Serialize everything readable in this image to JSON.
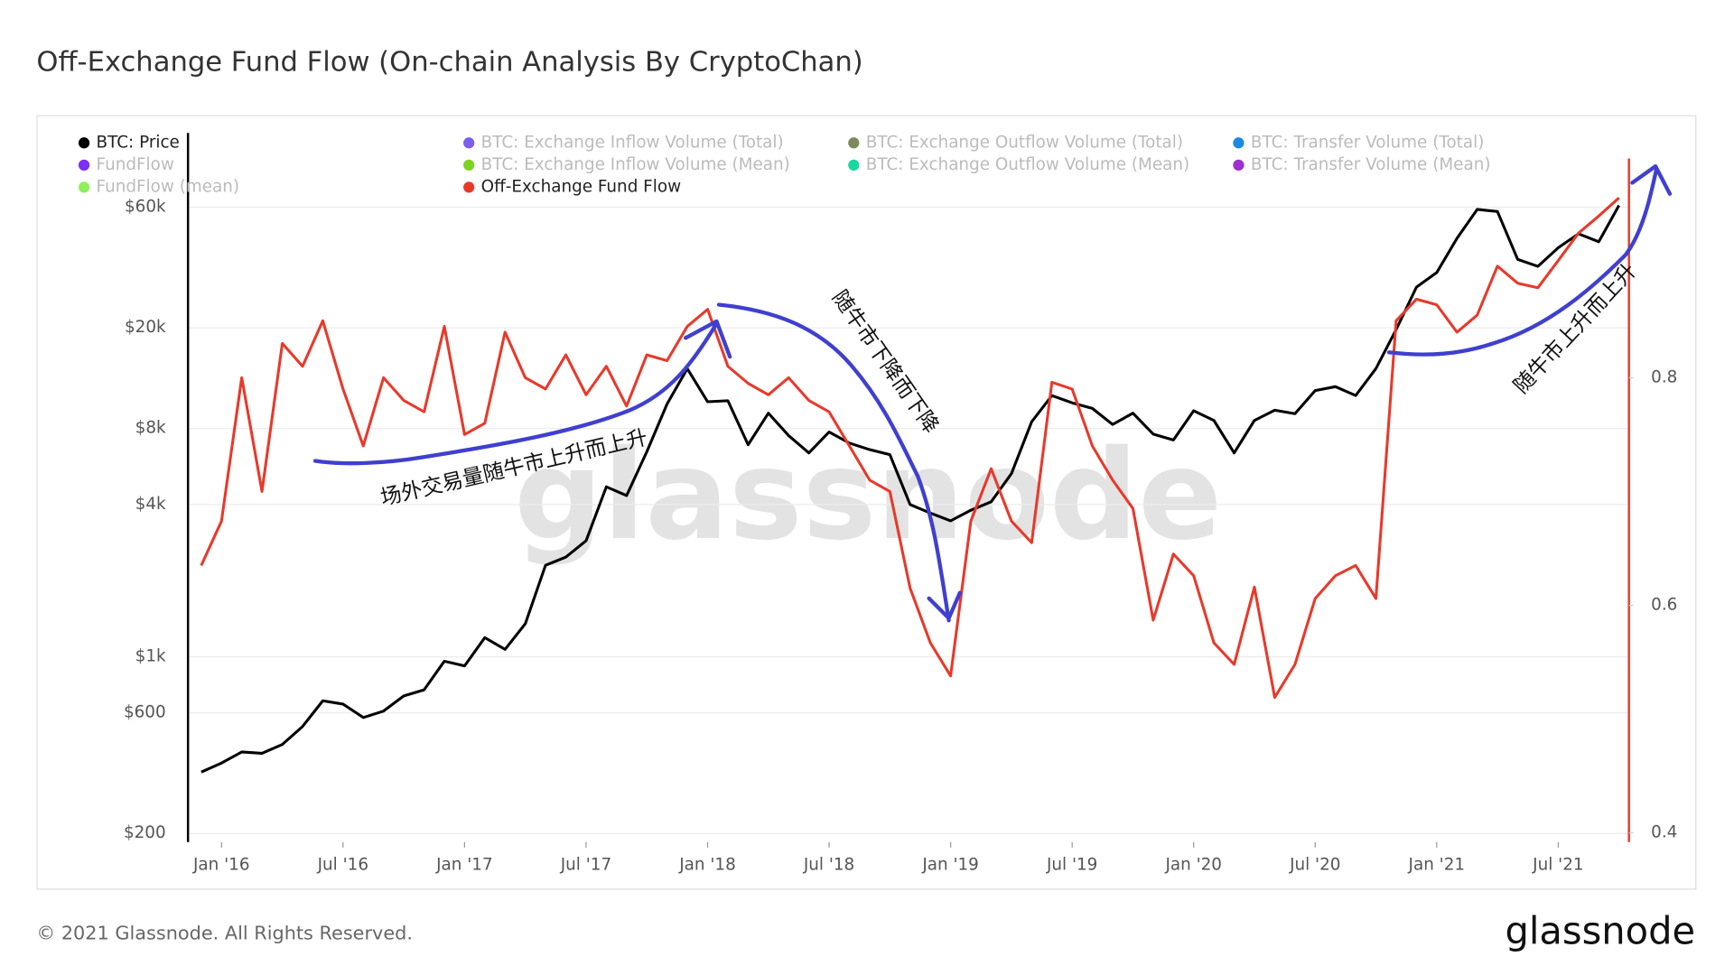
{
  "chart_data": {
    "type": "line",
    "title": "Off-Exchange Fund Flow (On-chain Analysis By CryptoChan)",
    "watermark": "glassnode",
    "footer": "© 2021 Glassnode. All Rights Reserved.",
    "brand": "glassnode",
    "ylog": true,
    "grid": true,
    "x": [
      "2015-12",
      "2016-01",
      "2016-02",
      "2016-03",
      "2016-04",
      "2016-05",
      "2016-06",
      "2016-07",
      "2016-08",
      "2016-09",
      "2016-10",
      "2016-11",
      "2016-12",
      "2017-01",
      "2017-02",
      "2017-03",
      "2017-04",
      "2017-05",
      "2017-06",
      "2017-07",
      "2017-08",
      "2017-09",
      "2017-10",
      "2017-11",
      "2017-12",
      "2018-01",
      "2018-02",
      "2018-03",
      "2018-04",
      "2018-05",
      "2018-06",
      "2018-07",
      "2018-08",
      "2018-09",
      "2018-10",
      "2018-11",
      "2018-12",
      "2019-01",
      "2019-02",
      "2019-03",
      "2019-04",
      "2019-05",
      "2019-06",
      "2019-07",
      "2019-08",
      "2019-09",
      "2019-10",
      "2019-11",
      "2019-12",
      "2020-01",
      "2020-02",
      "2020-03",
      "2020-04",
      "2020-05",
      "2020-06",
      "2020-07",
      "2020-08",
      "2020-09",
      "2020-10",
      "2020-11",
      "2020-12",
      "2021-01",
      "2021-02",
      "2021-03",
      "2021-04",
      "2021-05",
      "2021-06",
      "2021-07",
      "2021-08",
      "2021-09",
      "2021-10"
    ],
    "xticks": [
      {
        "value": "2016-01",
        "label": "Jan '16"
      },
      {
        "value": "2016-07",
        "label": "Jul '16"
      },
      {
        "value": "2017-01",
        "label": "Jan '17"
      },
      {
        "value": "2017-07",
        "label": "Jul '17"
      },
      {
        "value": "2018-01",
        "label": "Jan '18"
      },
      {
        "value": "2018-07",
        "label": "Jul '18"
      },
      {
        "value": "2019-01",
        "label": "Jan '19"
      },
      {
        "value": "2019-07",
        "label": "Jul '19"
      },
      {
        "value": "2020-01",
        "label": "Jan '20"
      },
      {
        "value": "2020-07",
        "label": "Jul '20"
      },
      {
        "value": "2021-01",
        "label": "Jan '21"
      },
      {
        "value": "2021-07",
        "label": "Jul '21"
      }
    ],
    "ylim": [
      185,
      118000
    ],
    "yticks": [
      {
        "value": 200,
        "label": "$200"
      },
      {
        "value": 600,
        "label": "$600"
      },
      {
        "value": 1000,
        "label": "$1k"
      },
      {
        "value": 4000,
        "label": "$4k"
      },
      {
        "value": 8000,
        "label": "$8k"
      },
      {
        "value": 20000,
        "label": "$20k"
      },
      {
        "value": 60000,
        "label": "$60k"
      }
    ],
    "y2lim": [
      0.392,
      1.015
    ],
    "y2ticks": [
      0.4,
      0.6,
      0.8
    ],
    "series": [
      {
        "name": "BTC: Price",
        "color": "#000000",
        "visible": true,
        "values": [
          350,
          380,
          420,
          415,
          450,
          530,
          670,
          650,
          575,
          610,
          700,
          740,
          960,
          920,
          1190,
          1070,
          1350,
          2300,
          2480,
          2880,
          4700,
          4340,
          6470,
          10000,
          13800,
          10200,
          10300,
          6900,
          9200,
          7500,
          6400,
          7750,
          7000,
          6600,
          6300,
          4000,
          3700,
          3450,
          3800,
          4100,
          5300,
          8500,
          10800,
          10100,
          9600,
          8300,
          9200,
          7600,
          7200,
          9400,
          8600,
          6400,
          8600,
          9450,
          9150,
          11300,
          11700,
          10800,
          13800,
          19700,
          29000,
          33100,
          45200,
          58800,
          57700,
          37300,
          35000,
          41500,
          47100,
          43800,
          61000
        ]
      },
      {
        "name": "BTC: Exchange Inflow Volume (Total)",
        "color": "#7d5cf0",
        "visible": false
      },
      {
        "name": "BTC: Exchange Outflow Volume (Total)",
        "color": "#7a8a5a",
        "visible": false
      },
      {
        "name": "BTC: Transfer Volume (Total)",
        "color": "#1e88e5",
        "visible": false
      },
      {
        "name": "FundFlow",
        "color": "#7b2ff7",
        "visible": false
      },
      {
        "name": "BTC: Exchange Inflow Volume (Mean)",
        "color": "#7ed321",
        "visible": false
      },
      {
        "name": "BTC: Exchange Outflow Volume (Mean)",
        "color": "#1ad6a0",
        "visible": false
      },
      {
        "name": "BTC: Transfer Volume (Mean)",
        "color": "#9b30d0",
        "visible": false
      },
      {
        "name": "FundFlow (mean)",
        "color": "#8ef05a",
        "visible": false
      },
      {
        "name": "Off-Exchange Fund Flow",
        "color": "#e8392b",
        "visible": true,
        "axis": "y2",
        "values": [
          0.635,
          0.674,
          0.8,
          0.7,
          0.83,
          0.81,
          0.85,
          0.79,
          0.74,
          0.8,
          0.78,
          0.77,
          0.845,
          0.75,
          0.76,
          0.84,
          0.8,
          0.79,
          0.82,
          0.785,
          0.81,
          0.775,
          0.82,
          0.815,
          0.845,
          0.86,
          0.81,
          0.795,
          0.785,
          0.8,
          0.78,
          0.77,
          0.74,
          0.71,
          0.7,
          0.615,
          0.567,
          0.538,
          0.674,
          0.72,
          0.674,
          0.655,
          0.796,
          0.79,
          0.74,
          0.71,
          0.685,
          0.587,
          0.645,
          0.626,
          0.567,
          0.548,
          0.616,
          0.519,
          0.548,
          0.606,
          0.626,
          0.635,
          0.606,
          0.85,
          0.869,
          0.864,
          0.84,
          0.855,
          0.898,
          0.883,
          0.879,
          0.903,
          0.927,
          0.942,
          0.958
        ]
      }
    ],
    "annotations": [
      "场外交易量随牛市上升而上升",
      "随牛市下降而下降",
      "随牛市上升而上升"
    ]
  }
}
